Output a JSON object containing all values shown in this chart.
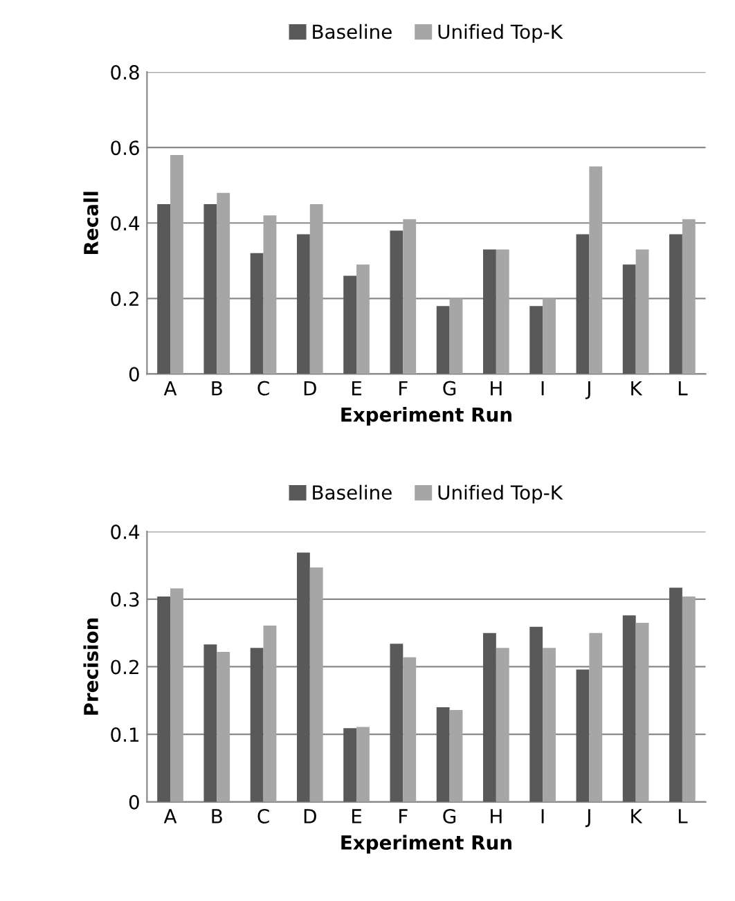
{
  "chart_data": [
    {
      "type": "bar",
      "xlabel": "Experiment Run",
      "ylabel": "Recall",
      "categories": [
        "A",
        "B",
        "C",
        "D",
        "E",
        "F",
        "G",
        "H",
        "I",
        "J",
        "K",
        "L"
      ],
      "series": [
        {
          "name": "Baseline",
          "color": "#595959",
          "values": [
            0.45,
            0.45,
            0.32,
            0.37,
            0.26,
            0.38,
            0.18,
            0.33,
            0.18,
            0.37,
            0.29,
            0.37
          ]
        },
        {
          "name": "Unified Top-K",
          "color": "#a6a6a6",
          "values": [
            0.58,
            0.48,
            0.42,
            0.45,
            0.29,
            0.41,
            0.2,
            0.33,
            0.2,
            0.55,
            0.33,
            0.41
          ]
        }
      ],
      "ylim": [
        0,
        0.8
      ],
      "yticks": [
        {
          "value": 0,
          "label": "0"
        },
        0.2,
        0.4,
        0.6,
        0.8
      ],
      "grid": "y",
      "legend": "top"
    },
    {
      "type": "bar",
      "xlabel": "Experiment Run",
      "ylabel": "Precision",
      "categories": [
        "A",
        "B",
        "C",
        "D",
        "E",
        "F",
        "G",
        "H",
        "I",
        "J",
        "K",
        "L"
      ],
      "series": [
        {
          "name": "Baseline",
          "color": "#595959",
          "values": [
            0.304,
            0.233,
            0.228,
            0.369,
            0.109,
            0.234,
            0.14,
            0.25,
            0.259,
            0.196,
            0.276,
            0.317
          ]
        },
        {
          "name": "Unified Top-K",
          "color": "#a6a6a6",
          "values": [
            0.316,
            0.222,
            0.261,
            0.347,
            0.111,
            0.214,
            0.136,
            0.228,
            0.228,
            0.25,
            0.265,
            0.304
          ]
        }
      ],
      "ylim": [
        0,
        0.4
      ],
      "yticks": [
        {
          "value": 0,
          "label": "0"
        },
        0.1,
        0.2,
        0.3,
        0.4
      ],
      "grid": "y",
      "legend": "top"
    }
  ]
}
